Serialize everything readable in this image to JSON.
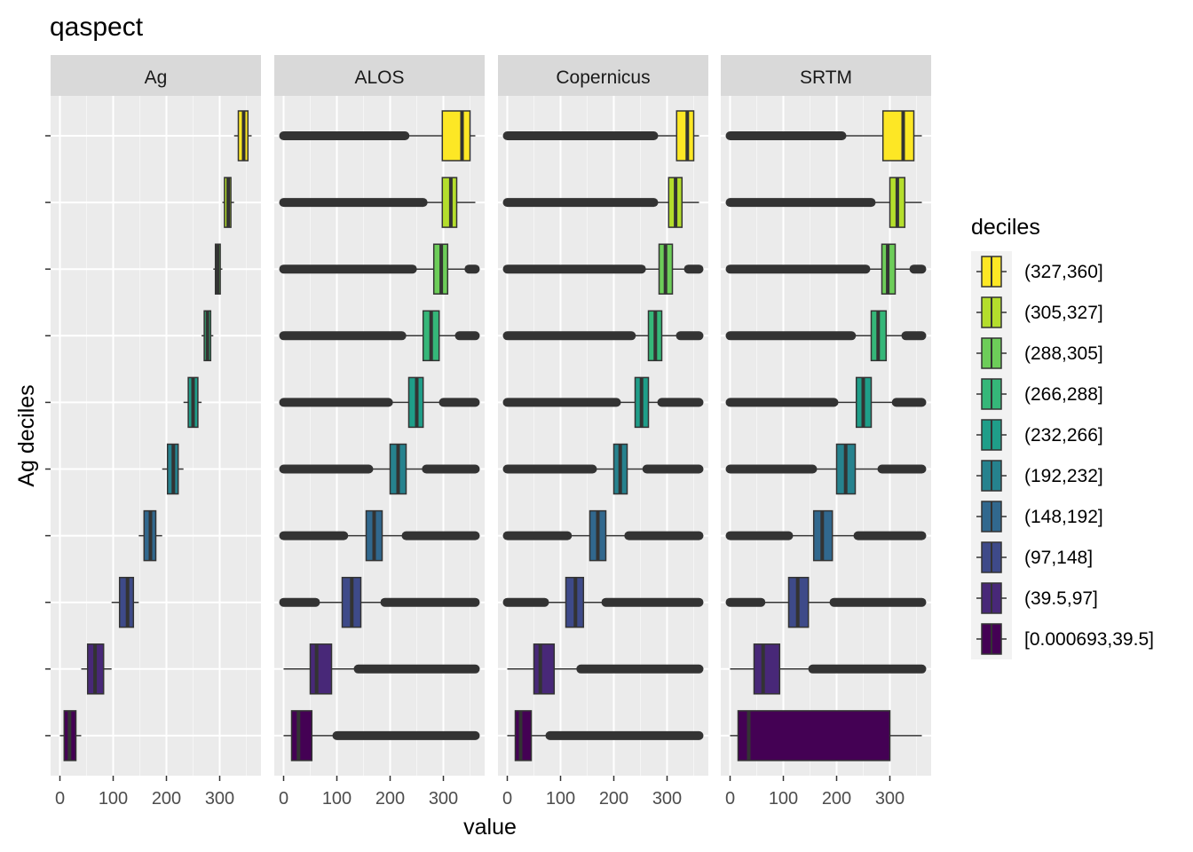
{
  "chart_data": {
    "type": "boxplot",
    "title": "qaspect",
    "xlabel": "value",
    "ylabel": "Ag deciles",
    "xlim": [
      -15,
      375
    ],
    "x_ticks": [
      0,
      100,
      200,
      300
    ],
    "legend_title": "deciles",
    "legend_position": "right",
    "deciles": [
      {
        "label": "[0.000693,39.5]",
        "color": "#440154"
      },
      {
        "label": "(39.5,97]",
        "color": "#482878"
      },
      {
        "label": "(97,148]",
        "color": "#3E4A89"
      },
      {
        "label": "(148,192]",
        "color": "#31688E"
      },
      {
        "label": "(192,232]",
        "color": "#26828E"
      },
      {
        "label": "(232,266]",
        "color": "#1F9E89"
      },
      {
        "label": "(266,288]",
        "color": "#35B779"
      },
      {
        "label": "(288,305]",
        "color": "#6DCD59"
      },
      {
        "label": "(305,327]",
        "color": "#B4DE2C"
      },
      {
        "label": "(327,360]",
        "color": "#FDE725"
      }
    ],
    "panels": [
      {
        "name": "Ag",
        "boxes": [
          {
            "wmin": 0,
            "q1": 8,
            "median": 18,
            "q3": 30,
            "wmax": 40,
            "out_low": null,
            "out_high": null
          },
          {
            "wmin": 40,
            "q1": 52,
            "median": 66,
            "q3": 82,
            "wmax": 97,
            "out_low": null,
            "out_high": null
          },
          {
            "wmin": 97,
            "q1": 112,
            "median": 127,
            "q3": 138,
            "wmax": 148,
            "out_low": null,
            "out_high": null
          },
          {
            "wmin": 148,
            "q1": 158,
            "median": 170,
            "q3": 180,
            "wmax": 192,
            "out_low": null,
            "out_high": null
          },
          {
            "wmin": 192,
            "q1": 202,
            "median": 213,
            "q3": 222,
            "wmax": 232,
            "out_low": null,
            "out_high": null
          },
          {
            "wmin": 232,
            "q1": 241,
            "median": 250,
            "q3": 259,
            "wmax": 266,
            "out_low": null,
            "out_high": null
          },
          {
            "wmin": 266,
            "q1": 271,
            "median": 277,
            "q3": 283,
            "wmax": 288,
            "out_low": null,
            "out_high": null
          },
          {
            "wmin": 288,
            "q1": 292,
            "median": 296,
            "q3": 301,
            "wmax": 305,
            "out_low": null,
            "out_high": null
          },
          {
            "wmin": 305,
            "q1": 309,
            "median": 316,
            "q3": 321,
            "wmax": 327,
            "out_low": null,
            "out_high": null
          },
          {
            "wmin": 327,
            "q1": 335,
            "median": 345,
            "q3": 353,
            "wmax": 360,
            "out_low": null,
            "out_high": null
          }
        ]
      },
      {
        "name": "ALOS",
        "boxes": [
          {
            "wmin": 0,
            "q1": 15,
            "median": 28,
            "q3": 53,
            "wmax": 100,
            "out_low": null,
            "out_high": [
              100,
              360
            ]
          },
          {
            "wmin": 0,
            "q1": 50,
            "median": 62,
            "q3": 90,
            "wmax": 140,
            "out_low": null,
            "out_high": [
              140,
              360
            ]
          },
          {
            "wmin": 60,
            "q1": 110,
            "median": 128,
            "q3": 145,
            "wmax": 190,
            "out_low": [
              0,
              60
            ],
            "out_high": [
              190,
              360
            ]
          },
          {
            "wmin": 113,
            "q1": 155,
            "median": 170,
            "q3": 185,
            "wmax": 230,
            "out_low": [
              0,
              113
            ],
            "out_high": [
              230,
              360
            ]
          },
          {
            "wmin": 160,
            "q1": 200,
            "median": 215,
            "q3": 230,
            "wmax": 268,
            "out_low": [
              0,
              160
            ],
            "out_high": [
              268,
              360
            ]
          },
          {
            "wmin": 197,
            "q1": 235,
            "median": 250,
            "q3": 262,
            "wmax": 300,
            "out_low": [
              0,
              197
            ],
            "out_high": [
              300,
              360
            ]
          },
          {
            "wmin": 222,
            "q1": 262,
            "median": 277,
            "q3": 292,
            "wmax": 330,
            "out_low": [
              0,
              222
            ],
            "out_high": [
              330,
              360
            ]
          },
          {
            "wmin": 242,
            "q1": 282,
            "median": 296,
            "q3": 308,
            "wmax": 348,
            "out_low": [
              0,
              242
            ],
            "out_high": [
              348,
              360
            ]
          },
          {
            "wmin": 262,
            "q1": 298,
            "median": 314,
            "q3": 325,
            "wmax": 360,
            "out_low": [
              0,
              262
            ],
            "out_high": null
          },
          {
            "wmin": 228,
            "q1": 298,
            "median": 335,
            "q3": 350,
            "wmax": 360,
            "out_low": [
              0,
              228
            ],
            "out_high": null
          }
        ]
      },
      {
        "name": "Copernicus",
        "boxes": [
          {
            "wmin": 0,
            "q1": 15,
            "median": 25,
            "q3": 45,
            "wmax": 80,
            "out_low": null,
            "out_high": [
              80,
              360
            ]
          },
          {
            "wmin": 0,
            "q1": 50,
            "median": 62,
            "q3": 88,
            "wmax": 138,
            "out_low": null,
            "out_high": [
              138,
              360
            ]
          },
          {
            "wmin": 70,
            "q1": 110,
            "median": 128,
            "q3": 143,
            "wmax": 185,
            "out_low": [
              0,
              70
            ],
            "out_high": [
              185,
              360
            ]
          },
          {
            "wmin": 113,
            "q1": 155,
            "median": 170,
            "q3": 185,
            "wmax": 228,
            "out_low": [
              0,
              113
            ],
            "out_high": [
              228,
              360
            ]
          },
          {
            "wmin": 160,
            "q1": 200,
            "median": 212,
            "q3": 225,
            "wmax": 262,
            "out_low": [
              0,
              160
            ],
            "out_high": [
              262,
              360
            ]
          },
          {
            "wmin": 205,
            "q1": 240,
            "median": 252,
            "q3": 265,
            "wmax": 290,
            "out_low": [
              0,
              205
            ],
            "out_high": [
              290,
              360
            ]
          },
          {
            "wmin": 233,
            "q1": 265,
            "median": 278,
            "q3": 290,
            "wmax": 325,
            "out_low": [
              0,
              233
            ],
            "out_high": [
              325,
              360
            ]
          },
          {
            "wmin": 252,
            "q1": 285,
            "median": 297,
            "q3": 310,
            "wmax": 340,
            "out_low": [
              0,
              252
            ],
            "out_high": [
              340,
              360
            ]
          },
          {
            "wmin": 275,
            "q1": 303,
            "median": 316,
            "q3": 328,
            "wmax": 360,
            "out_low": [
              0,
              275
            ],
            "out_high": null
          },
          {
            "wmin": 275,
            "q1": 318,
            "median": 338,
            "q3": 350,
            "wmax": 360,
            "out_low": [
              0,
              275
            ],
            "out_high": null
          }
        ]
      },
      {
        "name": "SRTM",
        "boxes": [
          {
            "wmin": 0,
            "q1": 15,
            "median": 35,
            "q3": 300,
            "wmax": 360,
            "out_low": null,
            "out_high": null
          },
          {
            "wmin": 0,
            "q1": 45,
            "median": 62,
            "q3": 93,
            "wmax": 155,
            "out_low": null,
            "out_high": [
              155,
              360
            ]
          },
          {
            "wmin": 58,
            "q1": 110,
            "median": 127,
            "q3": 147,
            "wmax": 195,
            "out_low": [
              0,
              58
            ],
            "out_high": [
              195,
              360
            ]
          },
          {
            "wmin": 110,
            "q1": 157,
            "median": 173,
            "q3": 192,
            "wmax": 240,
            "out_low": [
              0,
              110
            ],
            "out_high": [
              240,
              360
            ]
          },
          {
            "wmin": 155,
            "q1": 200,
            "median": 217,
            "q3": 235,
            "wmax": 285,
            "out_low": [
              0,
              155
            ],
            "out_high": [
              285,
              360
            ]
          },
          {
            "wmin": 195,
            "q1": 237,
            "median": 250,
            "q3": 265,
            "wmax": 312,
            "out_low": [
              0,
              195
            ],
            "out_high": [
              312,
              360
            ]
          },
          {
            "wmin": 228,
            "q1": 265,
            "median": 278,
            "q3": 293,
            "wmax": 330,
            "out_low": [
              0,
              228
            ],
            "out_high": [
              330,
              360
            ]
          },
          {
            "wmin": 255,
            "q1": 285,
            "median": 296,
            "q3": 310,
            "wmax": 345,
            "out_low": [
              0,
              255
            ],
            "out_high": [
              345,
              360
            ]
          },
          {
            "wmin": 265,
            "q1": 300,
            "median": 314,
            "q3": 328,
            "wmax": 360,
            "out_low": [
              0,
              265
            ],
            "out_high": null
          },
          {
            "wmin": 210,
            "q1": 287,
            "median": 325,
            "q3": 345,
            "wmax": 360,
            "out_low": [
              0,
              210
            ],
            "out_high": null
          }
        ]
      }
    ]
  }
}
